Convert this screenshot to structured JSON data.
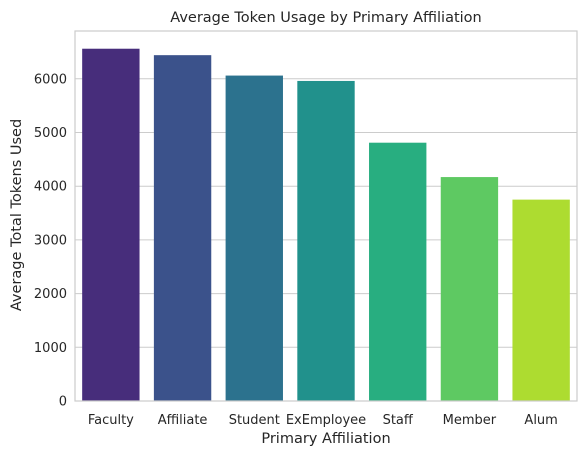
{
  "chart_data": {
    "type": "bar",
    "title": "Average Token Usage by Primary Affiliation",
    "xlabel": "Primary Affiliation",
    "ylabel": "Average Total Tokens Used",
    "categories": [
      "Faculty",
      "Affiliate",
      "Student",
      "ExEmployee",
      "Staff",
      "Member",
      "Alum"
    ],
    "values": [
      6560,
      6440,
      6060,
      5960,
      4810,
      4170,
      3750
    ],
    "colors": [
      "#472d7b",
      "#3b528b",
      "#2c728e",
      "#21918c",
      "#28ae80",
      "#5ec962",
      "#addc30"
    ],
    "ylim": [
      0,
      6890
    ],
    "yticks": [
      0,
      1000,
      2000,
      3000,
      4000,
      5000,
      6000
    ],
    "grid": "horizontal"
  }
}
